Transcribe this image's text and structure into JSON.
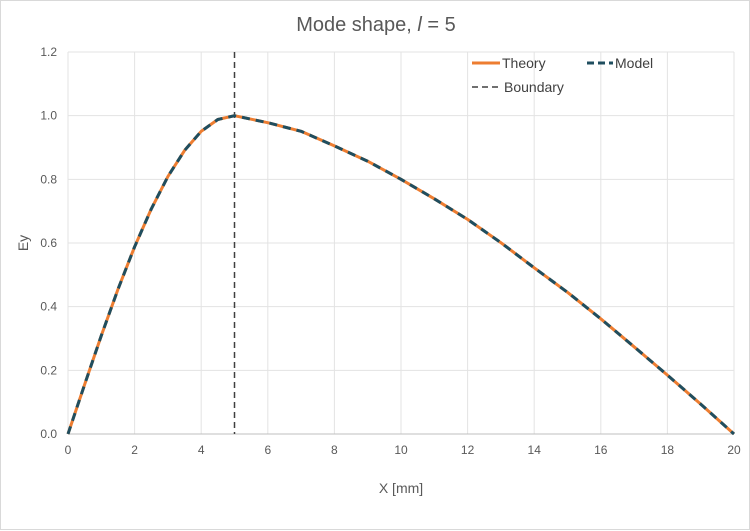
{
  "chart_data": {
    "type": "line",
    "title": "Mode shape, ",
    "title_italic": "l",
    "title_suffix": " = 5",
    "xlabel": "X [mm]",
    "ylabel": "Ey",
    "xlim": [
      0,
      20
    ],
    "ylim": [
      0,
      1.2
    ],
    "x_ticks": [
      0,
      2,
      4,
      6,
      8,
      10,
      12,
      14,
      16,
      18,
      20
    ],
    "y_ticks": [
      0.0,
      0.2,
      0.4,
      0.6,
      0.8,
      1.0,
      1.2
    ],
    "y_tick_labels": [
      "0.0",
      "0.2",
      "0.4",
      "0.6",
      "0.8",
      "1.0",
      "1.2"
    ],
    "grid": true,
    "legend_position": "top-right",
    "x": [
      0,
      0.5,
      1,
      1.5,
      2,
      2.5,
      3,
      3.5,
      4,
      4.5,
      5,
      6,
      7,
      8,
      9,
      10,
      11,
      12,
      13,
      14,
      15,
      16,
      17,
      18,
      19,
      20
    ],
    "series": [
      {
        "name": "Theory",
        "color": "#ED7D31",
        "style": "solid",
        "values": [
          0,
          0.156,
          0.309,
          0.454,
          0.588,
          0.707,
          0.809,
          0.891,
          0.951,
          0.988,
          1.0,
          0.978,
          0.951,
          0.905,
          0.857,
          0.8,
          0.739,
          0.674,
          0.601,
          0.522,
          0.445,
          0.362,
          0.274,
          0.185,
          0.094,
          0
        ]
      },
      {
        "name": "Model",
        "color": "#1F4E5F",
        "style": "dashed",
        "values": [
          0,
          0.156,
          0.309,
          0.454,
          0.588,
          0.707,
          0.809,
          0.891,
          0.951,
          0.988,
          1.0,
          0.978,
          0.951,
          0.905,
          0.857,
          0.8,
          0.739,
          0.674,
          0.601,
          0.522,
          0.445,
          0.362,
          0.274,
          0.185,
          0.094,
          0
        ]
      }
    ],
    "vertical_lines": [
      {
        "name": "Boundary",
        "x": 5,
        "color": "#404040",
        "style": "dashed"
      }
    ]
  }
}
